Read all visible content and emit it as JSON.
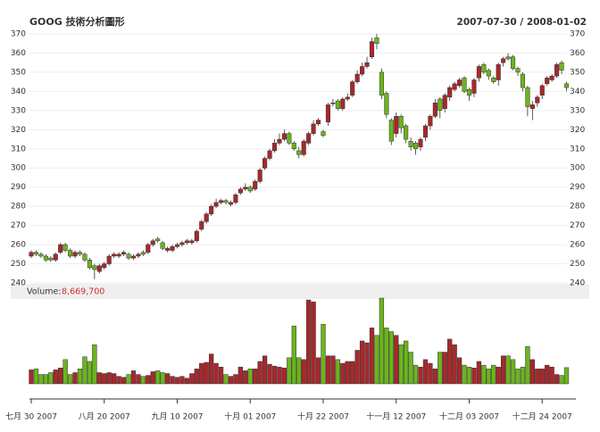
{
  "chart_data": {
    "type": "candlestick",
    "title": "GOOG 技術分析圖形",
    "subtitle": "2007-07-30 / 2008-01-02",
    "categories": [
      "七月 30 2007",
      null,
      null,
      null,
      null,
      null,
      null,
      null,
      null,
      null,
      null,
      null,
      null,
      null,
      null,
      "八月 20 2007",
      null,
      null,
      null,
      null,
      null,
      null,
      null,
      null,
      null,
      null,
      null,
      null,
      null,
      null,
      "九月 10 2007",
      null,
      null,
      null,
      null,
      null,
      null,
      null,
      null,
      null,
      null,
      null,
      null,
      null,
      null,
      "十月 01 2007",
      null,
      null,
      null,
      null,
      null,
      null,
      null,
      null,
      null,
      null,
      null,
      null,
      null,
      null,
      "十月 22 2007",
      null,
      null,
      null,
      null,
      null,
      null,
      null,
      null,
      null,
      null,
      null,
      null,
      null,
      null,
      "十一月 12 2007",
      null,
      null,
      null,
      null,
      null,
      null,
      null,
      null,
      null,
      null,
      null,
      null,
      null,
      null,
      "十二月 03 2007",
      null,
      null,
      null,
      null,
      null,
      null,
      null,
      null,
      null,
      null,
      null,
      null,
      null,
      null,
      "十二月 24 2007",
      null,
      null,
      null,
      null,
      null
    ],
    "open": [
      254,
      256,
      255,
      254,
      253,
      252,
      256,
      260,
      257,
      254,
      256,
      255,
      252,
      249,
      246,
      248,
      250,
      254,
      254,
      255,
      255,
      253,
      254,
      256,
      256,
      260,
      263,
      261,
      257,
      257,
      259,
      260,
      261,
      261,
      262,
      268,
      272,
      276,
      280,
      282,
      283,
      281,
      282,
      287,
      289,
      290,
      289,
      293,
      300,
      305,
      309,
      313,
      315,
      318,
      313,
      309,
      307,
      313,
      318,
      323,
      319,
      324,
      334,
      335,
      331,
      336,
      338,
      345,
      349,
      353,
      358,
      368,
      350,
      339,
      325,
      318,
      327,
      322,
      314,
      313,
      311,
      316,
      322,
      327,
      336,
      331,
      337,
      341,
      343,
      347,
      341,
      339,
      347,
      354,
      351,
      347,
      346,
      355,
      358,
      358,
      352,
      349,
      342,
      331,
      334,
      338,
      344,
      346,
      348,
      355,
      344
    ],
    "high": [
      257,
      257,
      256,
      255,
      254,
      256,
      261,
      261,
      258,
      257,
      257,
      256,
      253,
      250,
      250,
      251,
      255,
      256,
      256,
      257,
      256,
      255,
      256,
      257,
      261,
      263,
      264,
      262,
      259,
      260,
      261,
      262,
      263,
      263,
      268,
      273,
      277,
      281,
      284,
      284,
      284,
      283,
      287,
      290,
      292,
      291,
      294,
      300,
      306,
      310,
      315,
      318,
      320,
      319,
      314,
      311,
      315,
      319,
      325,
      326,
      320,
      334,
      336,
      336,
      337,
      339,
      346,
      351,
      355,
      358,
      368,
      370,
      352,
      340,
      326,
      329,
      328,
      323,
      316,
      314,
      316,
      323,
      328,
      336,
      337,
      339,
      343,
      345,
      347,
      348,
      342,
      347,
      354,
      355,
      352,
      348,
      355,
      358,
      360,
      359,
      353,
      350,
      343,
      335,
      338,
      344,
      348,
      349,
      355,
      356,
      345
    ],
    "low": [
      253,
      254,
      253,
      251,
      251,
      251,
      255,
      256,
      253,
      253,
      254,
      251,
      247,
      242,
      245,
      247,
      249,
      253,
      253,
      254,
      252,
      252,
      253,
      254,
      255,
      259,
      261,
      257,
      256,
      256,
      258,
      259,
      260,
      260,
      261,
      267,
      271,
      275,
      279,
      281,
      281,
      280,
      281,
      286,
      288,
      287,
      288,
      292,
      299,
      304,
      308,
      312,
      314,
      312,
      309,
      305,
      306,
      312,
      317,
      322,
      316,
      322,
      332,
      330,
      330,
      335,
      337,
      344,
      348,
      352,
      357,
      362,
      336,
      326,
      312,
      316,
      318,
      313,
      309,
      307,
      309,
      314,
      320,
      326,
      326,
      329,
      335,
      340,
      342,
      339,
      335,
      337,
      345,
      349,
      346,
      344,
      343,
      353,
      356,
      351,
      348,
      340,
      327,
      325,
      332,
      336,
      343,
      345,
      347,
      349,
      340
    ],
    "close": [
      256,
      255,
      254,
      252,
      252,
      255,
      260,
      257,
      254,
      256,
      255,
      252,
      248,
      247,
      249,
      250,
      254,
      255,
      255,
      256,
      253,
      254,
      255,
      255,
      260,
      262,
      262,
      258,
      258,
      259,
      260,
      261,
      262,
      262,
      267,
      272,
      276,
      280,
      282,
      283,
      282,
      282,
      286,
      289,
      290,
      288,
      293,
      299,
      305,
      309,
      313,
      315,
      318,
      313,
      310,
      307,
      314,
      318,
      323,
      325,
      317,
      333,
      334,
      331,
      336,
      337,
      345,
      349,
      353,
      355,
      366,
      365,
      338,
      328,
      314,
      327,
      321,
      315,
      311,
      310,
      315,
      322,
      327,
      334,
      330,
      338,
      342,
      344,
      346,
      340,
      338,
      346,
      353,
      350,
      348,
      345,
      354,
      357,
      357,
      352,
      350,
      342,
      332,
      333,
      337,
      343,
      347,
      348,
      354,
      351,
      342
    ],
    "volume": [
      7500000,
      8000000,
      5000000,
      5000000,
      6000000,
      7500000,
      8500000,
      13000000,
      5000000,
      6000000,
      8000000,
      14500000,
      12000000,
      21000000,
      6000000,
      5500000,
      6000000,
      5500000,
      4000000,
      3500000,
      5000000,
      7000000,
      5000000,
      4000000,
      4500000,
      6500000,
      7000000,
      6000000,
      5500000,
      4000000,
      3500000,
      4000000,
      3000000,
      5500000,
      8000000,
      11000000,
      11500000,
      16000000,
      11000000,
      9000000,
      5000000,
      4000000,
      5000000,
      9000000,
      7000000,
      8000000,
      8000000,
      12000000,
      15000000,
      10500000,
      9500000,
      9000000,
      8500000,
      14000000,
      31000000,
      14000000,
      13000000,
      45000000,
      44000000,
      14000000,
      32000000,
      15000000,
      15000000,
      13000000,
      11000000,
      12000000,
      12000000,
      18000000,
      23000000,
      22000000,
      30000000,
      26000000,
      46000000,
      30000000,
      28000000,
      26000000,
      21000000,
      23000000,
      17000000,
      10000000,
      9000000,
      13000000,
      11000000,
      8000000,
      17000000,
      17000000,
      24000000,
      21000000,
      14000000,
      10000000,
      9000000,
      8500000,
      12000000,
      10000000,
      8000000,
      10000000,
      9000000,
      15000000,
      15000000,
      13000000,
      8000000,
      9000000,
      20000000,
      13000000,
      8000000,
      8000000,
      10000000,
      9000000,
      5000000,
      4500000,
      8669700
    ],
    "volume_title": "Volume:",
    "volume_last_label": "8,669,700",
    "ylim": [
      240,
      370
    ],
    "yticks": [
      240,
      250,
      260,
      270,
      280,
      290,
      300,
      310,
      320,
      330,
      340,
      350,
      360,
      370
    ],
    "up_color": "#a8282b",
    "down_color": "#6bb51c",
    "grid": true
  }
}
